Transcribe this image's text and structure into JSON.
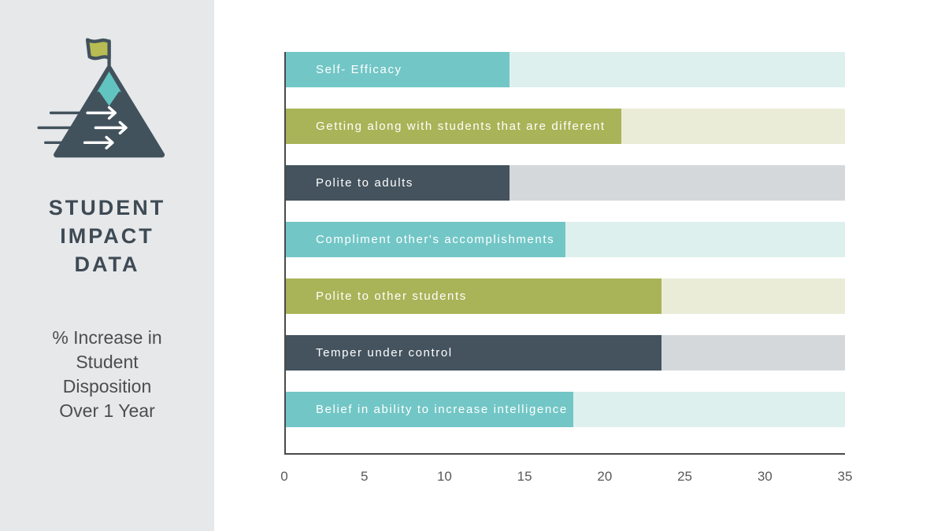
{
  "sidebar": {
    "icon": "mountain-flag-arrows-icon",
    "title_lines": [
      "STUDENT",
      "IMPACT",
      "DATA"
    ],
    "subtitle_lines": [
      "% Increase in",
      "Student",
      "Disposition",
      "Over 1 Year"
    ]
  },
  "chart_data": {
    "type": "bar",
    "orientation": "horizontal",
    "title": "STUDENT IMPACT DATA",
    "subtitle": "% Increase in Student Disposition Over 1 Year",
    "categories": [
      "Self- Efficacy",
      "Getting along with students that are different",
      "Polite to adults",
      "Compliment other's accomplishments",
      "Polite to other students",
      "Temper under control",
      "Belief in ability to increase intelligence"
    ],
    "values": [
      14,
      21,
      14,
      17.5,
      23.5,
      23.5,
      18
    ],
    "xlim": [
      0,
      35
    ],
    "x_ticks": [
      0,
      5,
      10,
      15,
      20,
      25,
      30,
      35
    ],
    "xlabel": "",
    "ylabel": "",
    "grid": false,
    "legend": false,
    "bar_colors": [
      "#72c6c6",
      "#a9b357",
      "#44535e",
      "#72c6c6",
      "#a9b357",
      "#44535e",
      "#72c6c6"
    ],
    "track_colors": [
      "#def0ee",
      "#eaecd8",
      "#d5d8da",
      "#def0ee",
      "#eaecd8",
      "#d5d8da",
      "#def0ee"
    ]
  },
  "colors": {
    "sidebar_bg": "#e6e8ea",
    "axis_line": "#4a4a4a",
    "tick_text": "#595959",
    "title_text": "#3e4a54",
    "subtitle_text": "#4b4d4e",
    "teal": "#72c6c6",
    "olive": "#a9b357",
    "slate": "#44535e"
  }
}
